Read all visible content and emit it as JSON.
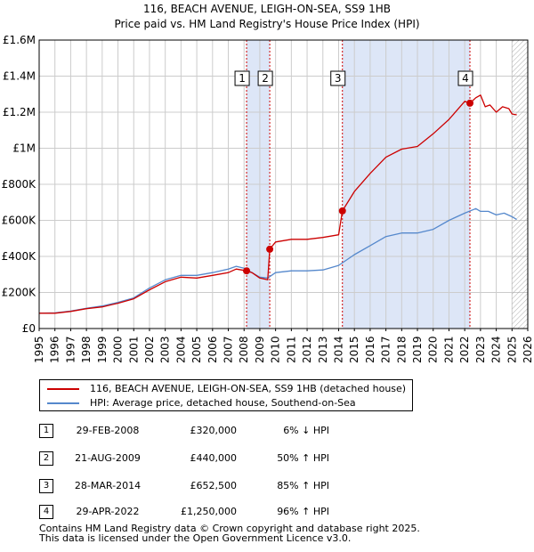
{
  "title_line1": "116, BEACH AVENUE, LEIGH-ON-SEA, SS9 1HB",
  "title_line2": "Price paid vs. HM Land Registry's House Price Index (HPI)",
  "chart_data": {
    "type": "line",
    "title": "116, BEACH AVENUE, LEIGH-ON-SEA, SS9 1HB — Price paid vs. HM Land Registry's House Price Index (HPI)",
    "xlabel": "",
    "ylabel": "",
    "xlim": [
      1995,
      2026
    ],
    "ylim": [
      0,
      1600000
    ],
    "y_ticks": [
      {
        "value": 0,
        "label": "£0"
      },
      {
        "value": 200000,
        "label": "£200K"
      },
      {
        "value": 400000,
        "label": "£400K"
      },
      {
        "value": 600000,
        "label": "£600K"
      },
      {
        "value": 800000,
        "label": "£800K"
      },
      {
        "value": 1000000,
        "label": "£1M"
      },
      {
        "value": 1200000,
        "label": "£1.2M"
      },
      {
        "value": 1400000,
        "label": "£1.4M"
      },
      {
        "value": 1600000,
        "label": "£1.6M"
      }
    ],
    "x_ticks": [
      "1995",
      "1996",
      "1997",
      "1998",
      "1999",
      "2000",
      "2001",
      "2002",
      "2003",
      "2004",
      "2005",
      "2006",
      "2007",
      "2008",
      "2009",
      "2010",
      "2011",
      "2012",
      "2013",
      "2014",
      "2015",
      "2016",
      "2017",
      "2018",
      "2019",
      "2020",
      "2021",
      "2022",
      "2023",
      "2024",
      "2025",
      "2026"
    ],
    "colors": {
      "property": "#cc0000",
      "hpi": "#5588cc",
      "shade": "#dde6f7",
      "vline": "#cc0000",
      "grid": "#cccccc",
      "future_hatch": "#999999"
    },
    "series": [
      {
        "name": "116, BEACH AVENUE, LEIGH-ON-SEA, SS9 1HB (detached house)",
        "color": "#cc0000",
        "x": [
          1995.0,
          1996.0,
          1997.0,
          1998.0,
          1999.0,
          2000.0,
          2001.0,
          2002.0,
          2003.0,
          2004.0,
          2005.0,
          2006.0,
          2007.0,
          2007.5,
          2008.16,
          2008.5,
          2009.0,
          2009.5,
          2009.63,
          2010.0,
          2011.0,
          2012.0,
          2013.0,
          2014.0,
          2014.24,
          2015.0,
          2016.0,
          2017.0,
          2018.0,
          2019.0,
          2020.0,
          2021.0,
          2022.0,
          2022.33,
          2022.7,
          2023.0,
          2023.3,
          2023.6,
          2024.0,
          2024.4,
          2024.8,
          2025.0,
          2025.3
        ],
        "y": [
          85000,
          85000,
          95000,
          110000,
          120000,
          140000,
          165000,
          215000,
          260000,
          285000,
          280000,
          295000,
          310000,
          330000,
          320000,
          310000,
          280000,
          270000,
          440000,
          480000,
          495000,
          495000,
          505000,
          520000,
          652500,
          760000,
          860000,
          950000,
          995000,
          1010000,
          1080000,
          1160000,
          1260000,
          1250000,
          1280000,
          1295000,
          1230000,
          1240000,
          1200000,
          1230000,
          1220000,
          1190000,
          1185000
        ]
      },
      {
        "name": "HPI: Average price, detached house, Southend-on-Sea",
        "color": "#5588cc",
        "x": [
          1995.0,
          1996.0,
          1997.0,
          1998.0,
          1999.0,
          2000.0,
          2001.0,
          2002.0,
          2003.0,
          2004.0,
          2005.0,
          2006.0,
          2007.0,
          2007.5,
          2008.0,
          2008.5,
          2009.0,
          2009.5,
          2010.0,
          2011.0,
          2012.0,
          2013.0,
          2014.0,
          2015.0,
          2016.0,
          2017.0,
          2018.0,
          2019.0,
          2020.0,
          2021.0,
          2022.0,
          2022.7,
          2023.0,
          2023.5,
          2024.0,
          2024.5,
          2025.0,
          2025.3
        ],
        "y": [
          85000,
          87000,
          97000,
          112000,
          125000,
          145000,
          170000,
          225000,
          270000,
          295000,
          295000,
          310000,
          330000,
          345000,
          335000,
          310000,
          285000,
          280000,
          310000,
          320000,
          320000,
          325000,
          350000,
          410000,
          460000,
          510000,
          530000,
          530000,
          550000,
          600000,
          640000,
          665000,
          650000,
          650000,
          630000,
          640000,
          620000,
          605000
        ]
      }
    ],
    "shaded_spans": [
      [
        2008.16,
        2009.63
      ],
      [
        2014.24,
        2022.33
      ]
    ],
    "future_region_start": 2025.0,
    "sales": [
      {
        "id": "1",
        "x": 2008.16,
        "y": 320000,
        "date": "29-FEB-2008",
        "price": "£320,000",
        "hpi_change": "6% ↓ HPI"
      },
      {
        "id": "2",
        "x": 2009.63,
        "y": 440000,
        "date": "21-AUG-2009",
        "price": "£440,000",
        "hpi_change": "50% ↑ HPI"
      },
      {
        "id": "3",
        "x": 2014.24,
        "y": 652500,
        "date": "28-MAR-2014",
        "price": "£652,500",
        "hpi_change": "85% ↑ HPI"
      },
      {
        "id": "4",
        "x": 2022.33,
        "y": 1250000,
        "date": "29-APR-2022",
        "price": "£1,250,000",
        "hpi_change": "96% ↑ HPI"
      }
    ]
  },
  "legend": {
    "property_label": "116, BEACH AVENUE, LEIGH-ON-SEA, SS9 1HB (detached house)",
    "hpi_label": "HPI: Average price, detached house, Southend-on-Sea"
  },
  "footer": {
    "line1": "Contains HM Land Registry data © Crown copyright and database right 2025.",
    "line2": "This data is licensed under the Open Government Licence v3.0."
  }
}
